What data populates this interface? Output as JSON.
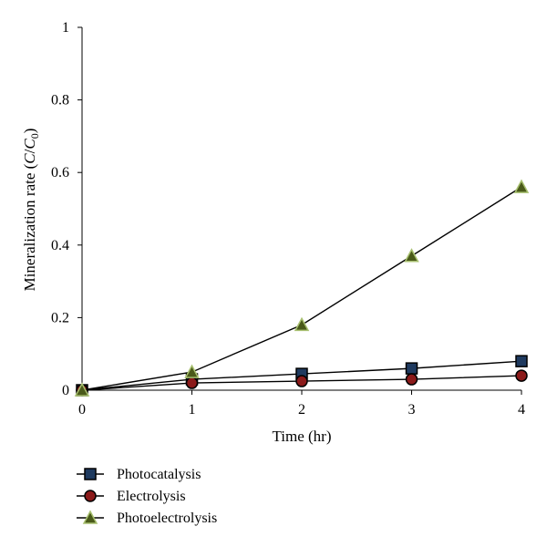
{
  "chart_data": {
    "type": "line",
    "title": "",
    "xlabel": "Time (hr)",
    "ylabel_parts": [
      "Mineralization rate (",
      "C",
      "/",
      "C",
      "0",
      ")"
    ],
    "xlim": [
      0,
      4
    ],
    "ylim": [
      0,
      1
    ],
    "xticks": [
      0,
      1,
      2,
      3,
      4
    ],
    "yticks": [
      0,
      0.2,
      0.4,
      0.6,
      0.8,
      1
    ],
    "ytick_labels": [
      "0",
      "0.2",
      "0.4",
      "0.6",
      "0.8",
      "1"
    ],
    "grid": false,
    "legend_position": "bottom-left",
    "x": [
      0,
      1,
      2,
      3,
      4
    ],
    "series": [
      {
        "name": "Photocatalysis",
        "values": [
          0,
          0.03,
          0.045,
          0.06,
          0.08
        ],
        "marker": "square",
        "marker_fill": "#1f3a5f",
        "marker_stroke": "#000000"
      },
      {
        "name": "Electrolysis",
        "values": [
          0,
          0.02,
          0.025,
          0.03,
          0.04
        ],
        "marker": "circle",
        "marker_fill": "#8b1a1a",
        "marker_stroke": "#000000"
      },
      {
        "name": "Photoelectrolysis",
        "values": [
          0,
          0.05,
          0.18,
          0.37,
          0.56
        ],
        "marker": "triangle",
        "marker_fill": "#4a5a1a",
        "marker_stroke": "#a8c070"
      }
    ]
  }
}
